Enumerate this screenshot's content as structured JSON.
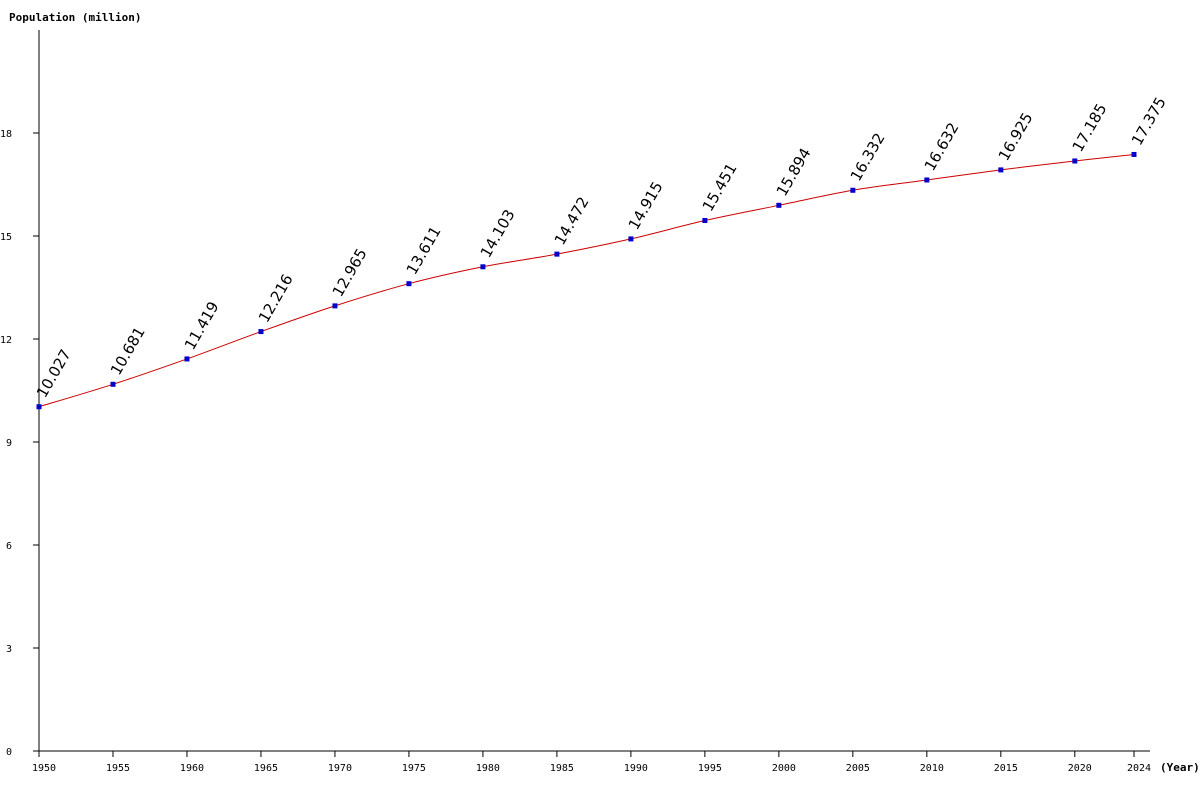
{
  "chart_data": {
    "type": "line",
    "title": "",
    "ylabel": "Population (million)",
    "xlabel": "(Year)",
    "x": [
      1950,
      1955,
      1960,
      1965,
      1970,
      1975,
      1980,
      1985,
      1990,
      1995,
      2000,
      2005,
      2010,
      2015,
      2020,
      2024
    ],
    "series": [
      {
        "values": [
          10.027,
          10.681,
          11.419,
          12.216,
          12.965,
          13.611,
          14.103,
          14.472,
          14.915,
          15.451,
          15.894,
          16.332,
          16.632,
          16.925,
          17.185,
          17.375
        ],
        "data_labels": [
          "10.027",
          "10.681",
          "11.419",
          "12.216",
          "12.965",
          "13.611",
          "14.103",
          "14.472",
          "14.915",
          "15.451",
          "15.894",
          "16.332",
          "16.632",
          "16.925",
          "17.185",
          "17.375"
        ]
      }
    ],
    "x_ticks": [
      "1950",
      "1955",
      "1960",
      "1965",
      "1970",
      "1975",
      "1980",
      "1985",
      "1990",
      "1995",
      "2000",
      "2005",
      "2010",
      "2015",
      "2020",
      "2024"
    ],
    "y_ticks": [
      "0",
      "3",
      "6",
      "9",
      "12",
      "15",
      "18"
    ],
    "y_tick_values": [
      0,
      3,
      6,
      9,
      12,
      15,
      18
    ],
    "xlim": [
      1950,
      2024
    ],
    "ylim": [
      0,
      21
    ],
    "grid": false,
    "legend": "none",
    "colors": {
      "line": "#cc0000",
      "marker": "#0000cc",
      "axis": "#000000"
    }
  }
}
